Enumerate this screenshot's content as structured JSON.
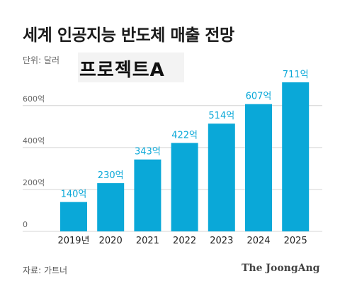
{
  "title": "세계 인공지능 반도체 매출 전망",
  "unit_label": "단위: 달러",
  "watermark_text": "프로젝트A",
  "source": "자료: 가트너",
  "brand": "The JoongAng",
  "colors": {
    "bar": "#0aa8d8",
    "label": "#0aa8d8",
    "grid": "#d4d4d4"
  },
  "chart_data": {
    "type": "bar",
    "title": "세계 인공지능 반도체 매출 전망",
    "xlabel": "",
    "ylabel": "",
    "categories": [
      "2019년",
      "2020",
      "2021",
      "2022",
      "2023",
      "2024",
      "2025"
    ],
    "values": [
      140,
      230,
      343,
      422,
      514,
      607,
      711
    ],
    "data_labels": [
      "140억",
      "230억",
      "343억",
      "422억",
      "514억",
      "607억",
      "711억"
    ],
    "yticks": [
      0,
      200,
      400,
      600
    ],
    "ytick_labels": [
      "0",
      "200억",
      "400억",
      "600억"
    ],
    "ylim": [
      0,
      711
    ],
    "grid": true
  }
}
